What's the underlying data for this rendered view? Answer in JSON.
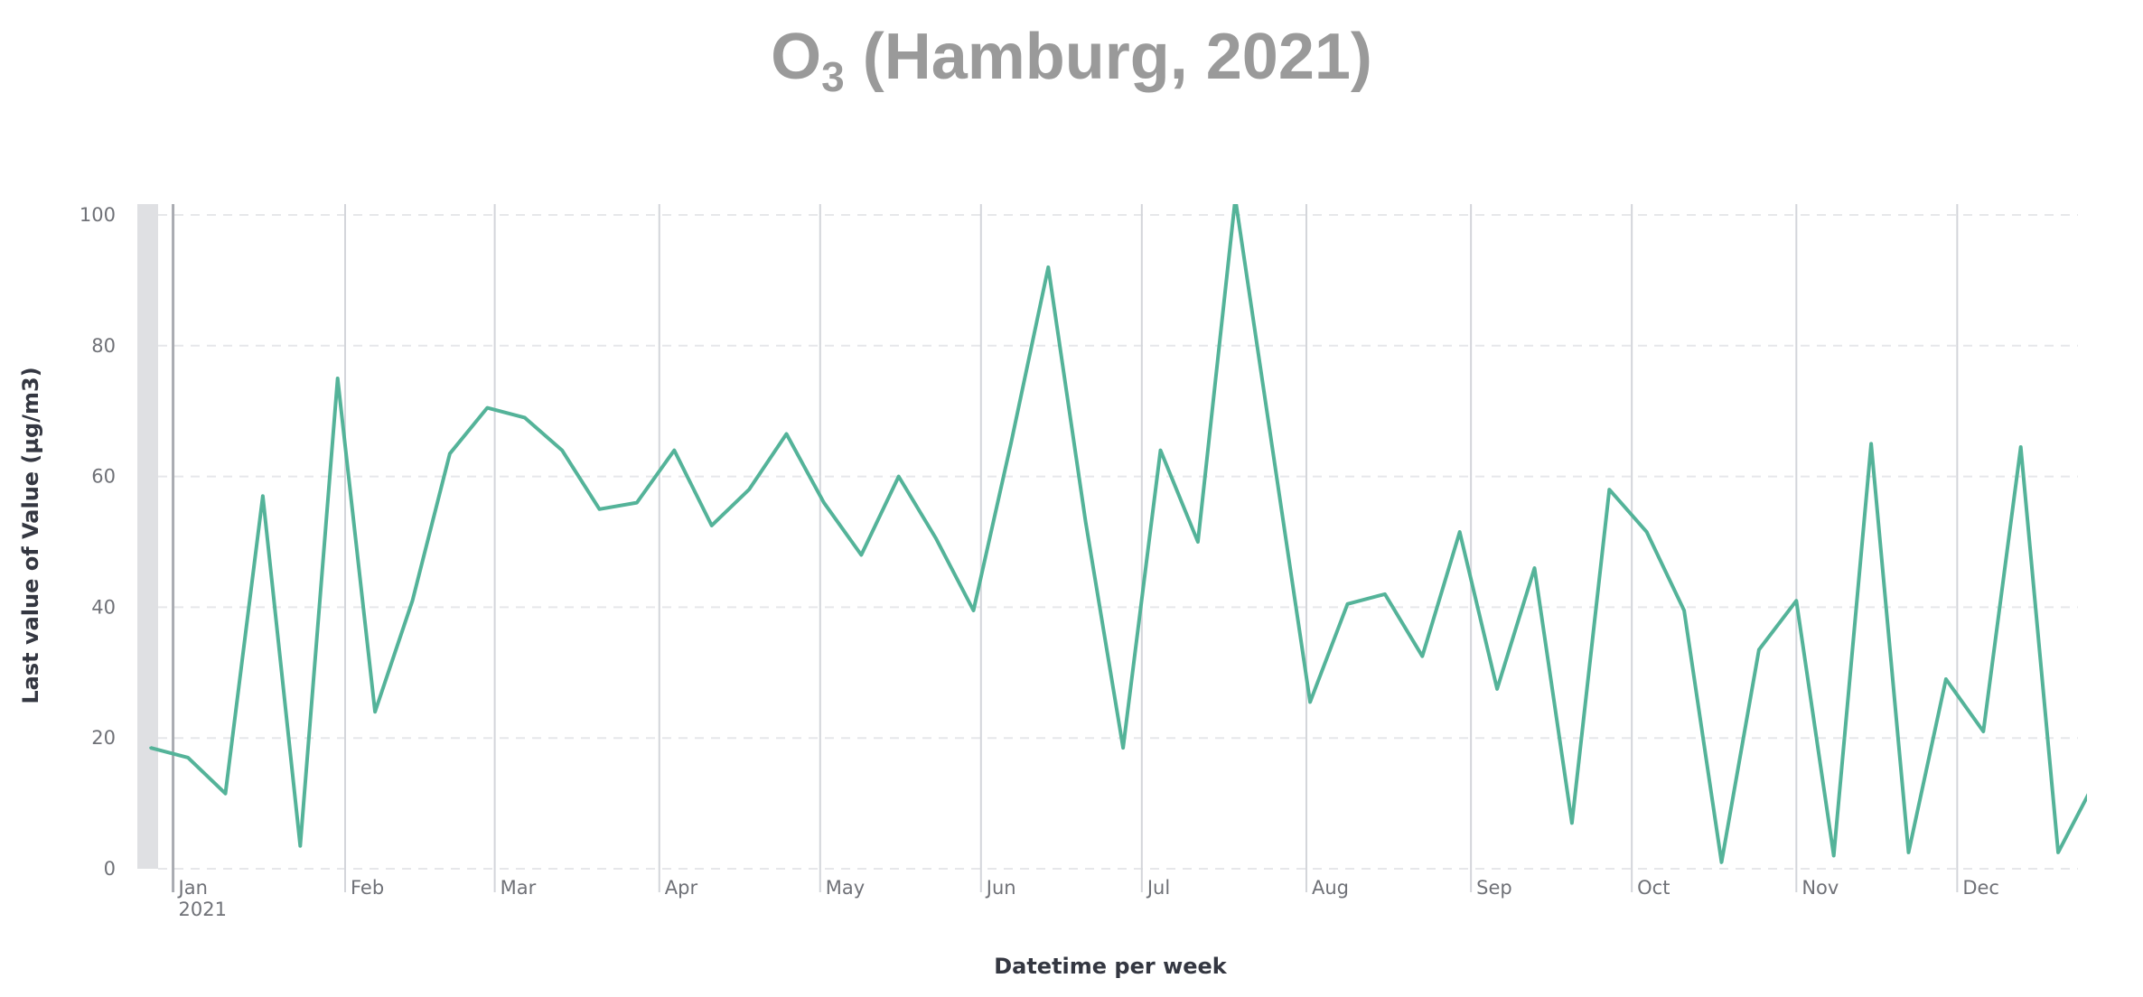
{
  "title": {
    "main": "O",
    "sub": "3",
    "rest": " (Hamburg, 2021)"
  },
  "colors": {
    "line": "#54b399",
    "grid": "#e6e7ea",
    "monthLine": "#d3d5da",
    "band": "#dfe0e3",
    "title": "#9a9a9a"
  },
  "chart_data": {
    "type": "line",
    "title": "O3 (Hamburg, 2021)",
    "xlabel": "Datetime per week",
    "ylabel": "Last value of Value (µg/m3)",
    "ylim": [
      0,
      100
    ],
    "yticks": [
      "0",
      "20",
      "40",
      "60",
      "80",
      "100"
    ],
    "grid": true,
    "x_year_label": "2021",
    "months": [
      "Jan",
      "Feb",
      "Mar",
      "Apr",
      "May",
      "Jun",
      "Jul",
      "Aug",
      "Sep",
      "Oct",
      "Nov",
      "Dec"
    ],
    "month_start_week": [
      0.2,
      2.5,
      4.5,
      6.7,
      8.85,
      11.0,
      13.15,
      15.35,
      17.55,
      19.7,
      21.9,
      24.05
    ],
    "series": [
      {
        "dashed_gap_after_week": 29,
        "x_weeks": [
          -0.1,
          0.4,
          0.9,
          1.4,
          1.9,
          2.4,
          2.9,
          3.4,
          3.9,
          4.4,
          4.9,
          5.4,
          5.9,
          6.4,
          6.9,
          7.4,
          7.9,
          8.4,
          8.9,
          9.4,
          9.9,
          10.4,
          10.9,
          11.4,
          11.9,
          12.4,
          12.9,
          13.4,
          13.9,
          14.4,
          15.4,
          15.9,
          16.4,
          16.9,
          17.4,
          17.9,
          18.4,
          18.9,
          19.4,
          19.9,
          20.4,
          20.9,
          21.4,
          21.9,
          22.4,
          22.9,
          23.4,
          23.9,
          24.4,
          24.9,
          25.4,
          25.9
        ],
        "values": [
          18.5,
          17,
          11.5,
          57,
          3.5,
          75,
          24,
          41,
          63.5,
          70.5,
          69,
          64,
          55,
          56,
          64,
          52.5,
          58,
          66.5,
          56,
          48,
          60,
          50.5,
          39.5,
          65,
          92,
          53,
          18.5,
          64,
          50,
          102.5,
          25.5,
          40.5,
          42,
          32.5,
          51.5,
          27.5,
          46,
          7,
          58,
          51.5,
          39.5,
          1,
          33.5,
          41,
          2,
          65,
          2.5,
          29,
          21,
          64.5,
          2.5,
          13.5
        ]
      }
    ]
  }
}
